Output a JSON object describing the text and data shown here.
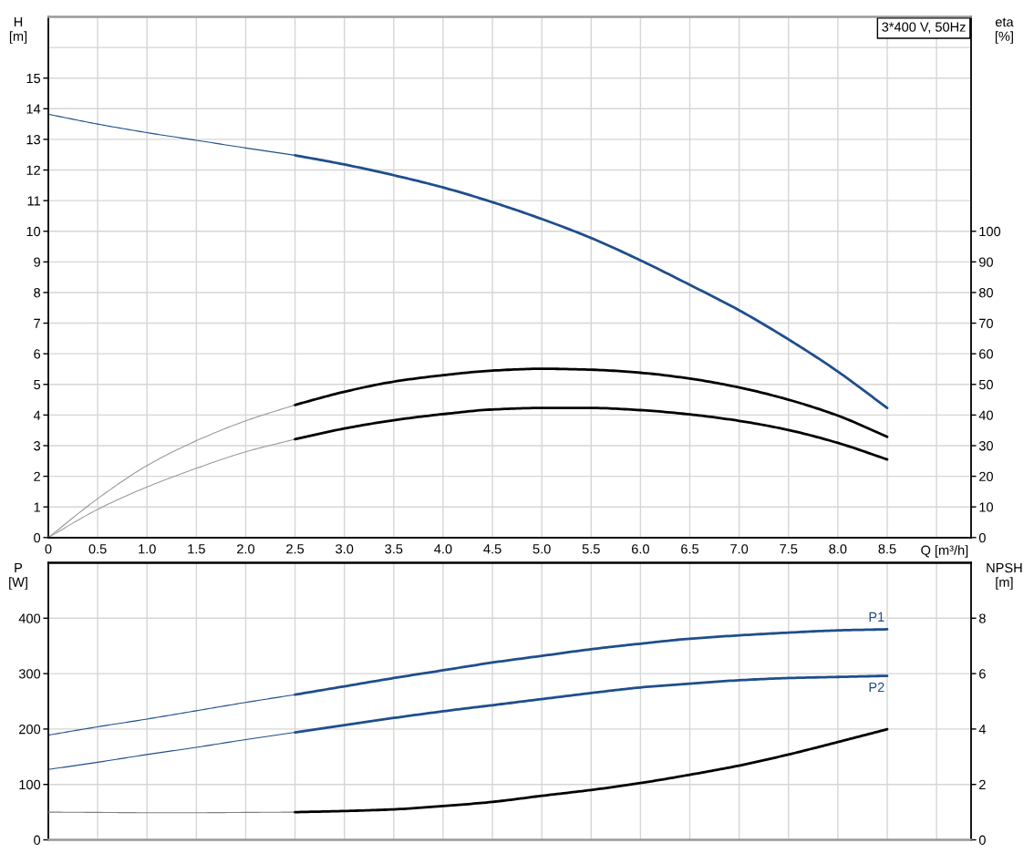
{
  "chart_data": [
    {
      "type": "line",
      "ylabel": "H\n[m]",
      "y2label": "eta\n[%]",
      "xlabel": "Q [m³/h]",
      "annotations": [
        "3*400 V, 50Hz"
      ],
      "xlim": [
        0,
        9.35
      ],
      "xticks": [
        0,
        0.5,
        {
          "value": 1,
          "label": "1.0"
        },
        1.5,
        {
          "value": 2,
          "label": "2.0"
        },
        2.5,
        {
          "value": 3,
          "label": "3.0"
        },
        3.5,
        {
          "value": 4,
          "label": "4.0"
        },
        4.5,
        {
          "value": 5,
          "label": "5.0"
        },
        5.5,
        {
          "value": 6,
          "label": "6.0"
        },
        6.5,
        {
          "value": 7,
          "label": "7.0"
        },
        7.5,
        {
          "value": 8,
          "label": "8.0"
        },
        8.5,
        {
          "value": 9,
          "label": null
        }
      ],
      "ylim": [
        0,
        17
      ],
      "yticks": [
        0,
        1,
        2,
        3,
        4,
        5,
        6,
        7,
        8,
        9,
        10,
        11,
        12,
        13,
        14,
        15,
        {
          "value": 16,
          "label": null
        }
      ],
      "y2lim": [
        0,
        170
      ],
      "y2ticks": [
        0,
        10,
        20,
        30,
        40,
        50,
        60,
        70,
        80,
        90,
        100
      ],
      "grid": true,
      "series": [
        {
          "color": "#1f4e8c",
          "x": [
            0,
            0.5,
            1,
            1.5,
            2,
            2.5
          ],
          "values": [
            13.82,
            13.5,
            13.22,
            12.97,
            12.72,
            12.48
          ]
        },
        {
          "color": "#1f4e8c",
          "x": [
            2.5,
            3,
            3.5,
            4,
            4.5,
            5,
            5.5,
            6,
            6.5,
            7,
            7.5,
            8,
            8.5
          ],
          "values": [
            12.48,
            12.18,
            11.83,
            11.43,
            10.95,
            10.4,
            9.78,
            9.05,
            8.25,
            7.42,
            6.47,
            5.42,
            4.23
          ]
        },
        {
          "axis": "y2",
          "color": "#9a9a9a",
          "x": [
            0,
            0.5,
            1,
            1.5,
            2,
            2.5
          ],
          "values": [
            0,
            12.7,
            23.5,
            31.6,
            38.1,
            43.3
          ]
        },
        {
          "axis": "y2",
          "color": "#000000",
          "x": [
            2.5,
            3,
            3.5,
            4,
            4.5,
            5,
            5.5,
            6,
            6.5,
            7,
            7.5,
            8,
            8.5
          ],
          "values": [
            43.3,
            47.6,
            50.9,
            53.0,
            54.5,
            55.1,
            54.8,
            53.8,
            51.9,
            49.0,
            45.0,
            39.8,
            32.9
          ]
        },
        {
          "axis": "y2",
          "color": "#9a9a9a",
          "x": [
            0,
            0.5,
            1,
            1.5,
            2,
            2.5
          ],
          "values": [
            0,
            9.2,
            16.5,
            22.6,
            28.0,
            32.1
          ]
        },
        {
          "axis": "y2",
          "color": "#000000",
          "x": [
            2.5,
            3,
            3.5,
            4,
            4.5,
            5,
            5.5,
            6,
            6.5,
            7,
            7.5,
            8,
            8.5
          ],
          "values": [
            32.1,
            35.6,
            38.3,
            40.3,
            41.8,
            42.3,
            42.3,
            41.6,
            40.2,
            38.1,
            35.1,
            30.9,
            25.5
          ]
        }
      ]
    },
    {
      "type": "line",
      "ylabel": "P\n[W]",
      "y2label": "NPSH\n[m]",
      "tick_labels": "y",
      "xlim": [
        0,
        9.35
      ],
      "xticks": [
        0,
        0.5,
        1,
        1.5,
        2,
        2.5,
        3,
        3.5,
        4,
        4.5,
        5,
        5.5,
        6,
        6.5,
        7,
        7.5,
        8,
        8.5,
        9
      ],
      "ylim": [
        0,
        500
      ],
      "yticks": [
        0,
        100,
        200,
        300,
        400
      ],
      "y2lim": [
        0,
        10
      ],
      "y2ticks": [
        0,
        2,
        4,
        6,
        8
      ],
      "grid": true,
      "series": [
        {
          "color": "#1f4e8c",
          "x": [
            0,
            0.5,
            1,
            1.5,
            2,
            2.5
          ],
          "values": [
            189,
            204,
            218,
            233,
            248,
            262
          ]
        },
        {
          "name": "P1",
          "color": "#1f4e8c",
          "x": [
            2.5,
            3,
            3.5,
            4,
            4.5,
            5,
            5.5,
            6,
            6.5,
            7,
            7.5,
            8,
            8.5
          ],
          "values": [
            262,
            277,
            292,
            306,
            320,
            332,
            344,
            354,
            363,
            369,
            374,
            378,
            380
          ]
        },
        {
          "color": "#1f4e8c",
          "x": [
            0,
            0.5,
            1,
            1.5,
            2,
            2.5
          ],
          "values": [
            127,
            140,
            154,
            167,
            181,
            194
          ]
        },
        {
          "name": "P2",
          "color": "#1f4e8c",
          "x": [
            2.5,
            3,
            3.5,
            4,
            4.5,
            5,
            5.5,
            6,
            6.5,
            7,
            7.5,
            8,
            8.5
          ],
          "values": [
            194,
            207,
            220,
            232,
            243,
            254,
            265,
            275,
            282,
            288,
            292,
            294,
            296
          ]
        },
        {
          "axis": "y2",
          "color": "#808080",
          "x": [
            0,
            0.5,
            1,
            1.5,
            2,
            2.5
          ],
          "values": [
            1,
            0.99,
            0.98,
            0.98,
            0.99,
            1
          ]
        },
        {
          "axis": "y2",
          "color": "#000000",
          "x": [
            2.5,
            3,
            3.5,
            4,
            4.5,
            5,
            5.5,
            6,
            6.5,
            7,
            7.5,
            8,
            8.5
          ],
          "values": [
            1,
            1.04,
            1.1,
            1.22,
            1.37,
            1.59,
            1.8,
            2.05,
            2.35,
            2.68,
            3.08,
            3.53,
            3.99
          ]
        }
      ]
    }
  ]
}
